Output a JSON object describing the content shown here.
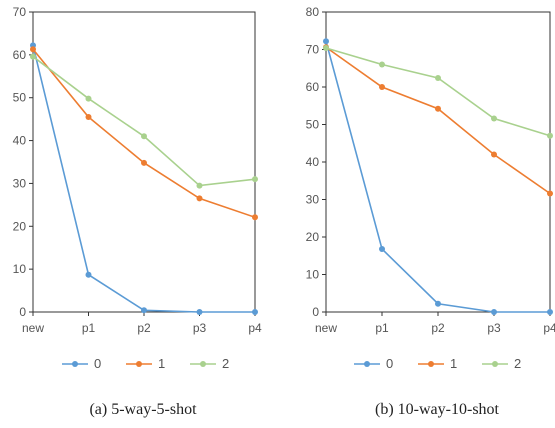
{
  "chart_data": [
    {
      "type": "line",
      "categories": [
        "new",
        "p1",
        "p2",
        "p3",
        "p4"
      ],
      "ylim": [
        0,
        70
      ],
      "yticks": [
        0,
        10,
        20,
        30,
        40,
        50,
        60,
        70
      ],
      "grid": false,
      "legend_position": "bottom",
      "series": [
        {
          "name": "0",
          "color": "#5b9bd5",
          "values": [
            62.2,
            8.7,
            0.4,
            0.0,
            0.0
          ]
        },
        {
          "name": "1",
          "color": "#ed7d31",
          "values": [
            61.3,
            45.5,
            34.8,
            26.5,
            22.1
          ]
        },
        {
          "name": "2",
          "color": "#a9d18e",
          "values": [
            59.6,
            49.8,
            41.0,
            29.5,
            31.0
          ]
        }
      ],
      "caption": "(a)  5-way-5-shot"
    },
    {
      "type": "line",
      "categories": [
        "new",
        "p1",
        "p2",
        "p3",
        "p4"
      ],
      "ylim": [
        0,
        80
      ],
      "yticks": [
        0,
        10,
        20,
        30,
        40,
        50,
        60,
        70,
        80
      ],
      "grid": false,
      "legend_position": "bottom",
      "series": [
        {
          "name": "0",
          "color": "#5b9bd5",
          "values": [
            72.2,
            16.8,
            2.2,
            0.0,
            0.0
          ]
        },
        {
          "name": "1",
          "color": "#ed7d31",
          "values": [
            70.6,
            60.0,
            54.2,
            42.0,
            31.6
          ]
        },
        {
          "name": "2",
          "color": "#a9d18e",
          "values": [
            70.4,
            66.0,
            62.4,
            51.6,
            47.0
          ]
        }
      ],
      "caption": "(b)  10-way-10-shot"
    }
  ]
}
